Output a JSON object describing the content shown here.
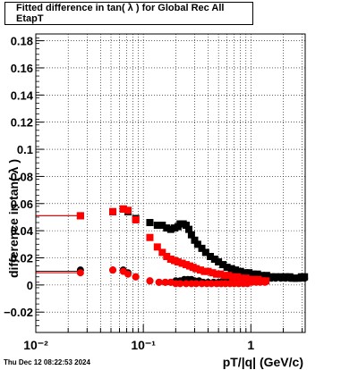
{
  "title": "Fitted difference in tan( λ ) for Global Rec All EtapT",
  "timestamp": "Thu Dec 12 08:22:53 2024",
  "chart_data": {
    "type": "scatter",
    "title": "Fitted difference in tan( λ ) for Global Rec All EtapT",
    "xlabel": "pT/|q| (GeV/c)",
    "ylabel": "difference in tan( λ )",
    "xscale": "log",
    "xlim": [
      0.01,
      3.2
    ],
    "ylim": [
      -0.035,
      0.185
    ],
    "y_ticks": [
      -0.02,
      0,
      0.02,
      0.04,
      0.06,
      0.08,
      0.1,
      0.12,
      0.14,
      0.16,
      0.18
    ],
    "y_tick_labels": [
      "−0.02",
      "0",
      "0.02",
      "0.04",
      "0.06",
      "0.08",
      "0.1",
      "0.12",
      "0.14",
      "0.16",
      "0.18"
    ],
    "x_ticks": [
      0.01,
      0.1,
      1
    ],
    "x_tick_labels": [
      "10⁻²",
      "10⁻¹",
      "1"
    ],
    "grid": true,
    "colors": {
      "black": "#000000",
      "red": "#ff0000"
    },
    "series": [
      {
        "marker": "square",
        "color": "#000000",
        "x": [
          0.0095,
          0.026,
          0.052,
          0.065,
          0.072,
          0.085,
          0.115,
          0.135,
          0.15,
          0.165,
          0.18,
          0.195,
          0.21,
          0.22,
          0.235,
          0.25,
          0.265,
          0.28,
          0.3,
          0.32,
          0.35,
          0.38,
          0.42,
          0.46,
          0.5,
          0.55,
          0.6,
          0.66,
          0.72,
          0.8,
          0.88,
          0.96,
          1.05,
          1.15,
          1.25,
          1.4,
          1.55,
          1.7,
          1.9,
          2.1,
          2.3,
          2.5,
          2.7,
          2.95,
          3.15
        ],
        "y": [
          0.051,
          0.051,
          0.054,
          0.056,
          0.054,
          0.049,
          0.046,
          0.044,
          0.044,
          0.042,
          0.041,
          0.042,
          0.043,
          0.045,
          0.045,
          0.044,
          0.041,
          0.037,
          0.033,
          0.03,
          0.027,
          0.024,
          0.021,
          0.019,
          0.017,
          0.015,
          0.013,
          0.012,
          0.011,
          0.01,
          0.009,
          0.009,
          0.008,
          0.008,
          0.007,
          0.007,
          0.006,
          0.006,
          0.006,
          0.006,
          0.006,
          0.005,
          0.005,
          0.006,
          0.006
        ]
      },
      {
        "marker": "circle",
        "color": "#000000",
        "x": [
          0.0095,
          0.026,
          0.052,
          0.065,
          0.072,
          0.085,
          0.115,
          0.14,
          0.16,
          0.18,
          0.2,
          0.22,
          0.24,
          0.26,
          0.28,
          0.3,
          0.33,
          0.36,
          0.4,
          0.45,
          0.5,
          0.55,
          0.6,
          0.66,
          0.72,
          0.8,
          0.88,
          0.96,
          1.05,
          1.15,
          1.25,
          1.4,
          1.55,
          1.7,
          1.9,
          2.1,
          2.3,
          2.5,
          2.7,
          2.95,
          3.15
        ],
        "y": [
          0.01,
          0.011,
          0.011,
          0.011,
          0.009,
          0.006,
          0.003,
          0.002,
          0.002,
          0.002,
          0.003,
          0.003,
          0.004,
          0.004,
          0.004,
          0.003,
          0.003,
          0.002,
          0.002,
          0.002,
          0.002,
          0.003,
          0.003,
          0.003,
          0.003,
          0.004,
          0.004,
          0.005,
          0.005,
          0.005,
          0.005,
          0.005,
          0.005,
          0.005,
          0.005,
          0.005,
          0.005,
          0.005,
          0.005,
          0.005,
          0.005
        ]
      },
      {
        "marker": "square",
        "color": "#ff0000",
        "x": [
          0.0095,
          0.026,
          0.052,
          0.065,
          0.072,
          0.085,
          0.115,
          0.135,
          0.15,
          0.165,
          0.18,
          0.195,
          0.21,
          0.23,
          0.25,
          0.27,
          0.29,
          0.31,
          0.34,
          0.37,
          0.4,
          0.44,
          0.48,
          0.52,
          0.57,
          0.62,
          0.68,
          0.75,
          0.82,
          0.9,
          0.98,
          1.07,
          1.17,
          1.27,
          1.38
        ],
        "y": [
          0.051,
          0.051,
          0.054,
          0.056,
          0.055,
          0.048,
          0.035,
          0.028,
          0.024,
          0.021,
          0.019,
          0.018,
          0.017,
          0.016,
          0.015,
          0.014,
          0.013,
          0.012,
          0.011,
          0.01,
          0.01,
          0.009,
          0.008,
          0.008,
          0.007,
          0.007,
          0.006,
          0.006,
          0.005,
          0.005,
          0.004,
          0.004,
          0.004,
          0.003,
          0.003
        ]
      },
      {
        "marker": "circle",
        "color": "#ff0000",
        "x": [
          0.0095,
          0.026,
          0.052,
          0.065,
          0.072,
          0.085,
          0.115,
          0.14,
          0.16,
          0.18,
          0.2,
          0.22,
          0.25,
          0.28,
          0.31,
          0.35,
          0.39,
          0.43,
          0.48,
          0.53,
          0.58,
          0.64,
          0.7,
          0.77,
          0.85,
          0.93,
          1.02,
          1.12,
          1.22,
          1.35
        ],
        "y": [
          0.009,
          0.009,
          0.011,
          0.01,
          0.008,
          0.006,
          0.003,
          0.002,
          0.002,
          0.002,
          0.001,
          0.001,
          0.001,
          0.001,
          0.001,
          0.001,
          0.001,
          0.001,
          0.001,
          0.001,
          0.001,
          0.001,
          0.001,
          0.001,
          0.001,
          0.001,
          0.002,
          0.002,
          0.002,
          0.002
        ]
      }
    ]
  }
}
